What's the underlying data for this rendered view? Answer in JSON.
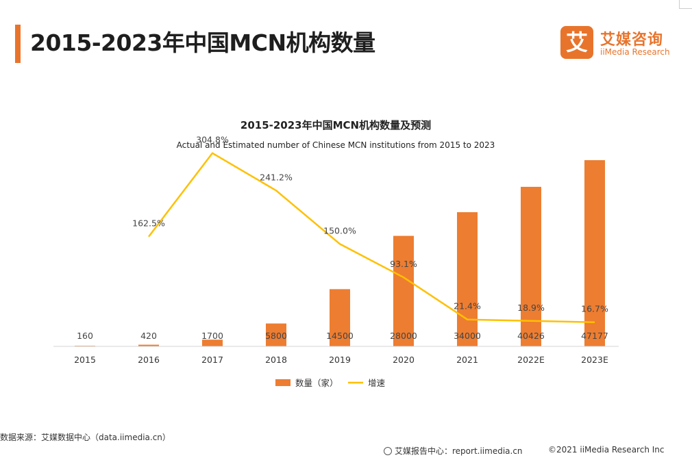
{
  "header": {
    "title": "2015-2023年中国MCN机构数量"
  },
  "logo": {
    "mark": "艾",
    "name_cn": "艾媒咨询",
    "name_en": "iiMedia Research"
  },
  "chart_data": {
    "type": "bar",
    "title": "2015-2023年中国MCN机构数量及预测",
    "subtitle": "Actual and Estimated number of Chinese MCN institutions from 2015 to 2023",
    "categories": [
      "2015",
      "2016",
      "2017",
      "2018",
      "2019",
      "2020",
      "2021",
      "2022E",
      "2023E"
    ],
    "series": [
      {
        "name": "数量（家）",
        "type": "bar",
        "color": "#ed7d31",
        "values": [
          160,
          420,
          1700,
          5800,
          14500,
          28000,
          34000,
          40426,
          47177
        ],
        "labels": [
          "160",
          "420",
          "1700",
          "5800",
          "14500",
          "28000",
          "34000",
          "40426",
          "47177"
        ]
      },
      {
        "name": "增速",
        "type": "line",
        "color": "#ffc000",
        "values": [
          null,
          162.5,
          304.8,
          241.2,
          150.0,
          93.1,
          21.4,
          18.9,
          16.7
        ],
        "labels": [
          "",
          "162.5%",
          "304.8%",
          "241.2%",
          "150.0%",
          "93.1%",
          "21.4%",
          "18.9%",
          "16.7%"
        ]
      }
    ],
    "ylim": [
      0,
      47177
    ],
    "y2lim": [
      0,
      350
    ],
    "grid": false,
    "legend_position": "bottom-center"
  },
  "source": {
    "text": "数据来源：艾媒数据中心（data.iimedia.cn）"
  },
  "footer": {
    "report": "艾媒报告中心：report.iimedia.cn",
    "copyright": "©2021  iiMedia Research  Inc"
  }
}
